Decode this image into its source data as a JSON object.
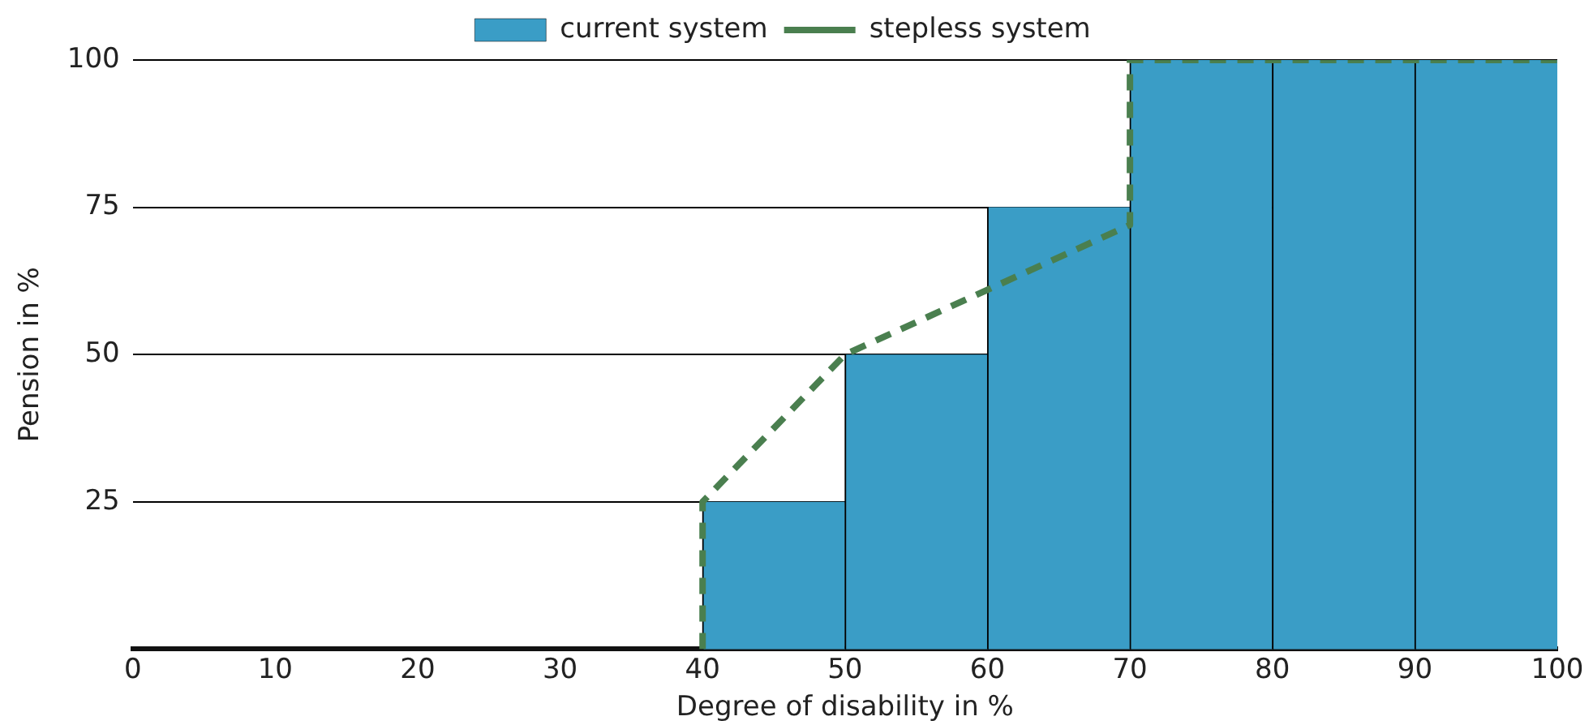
{
  "chart_data": {
    "type": "histogram",
    "xlabel": "Degree of disability in %",
    "ylabel": "Pension in %",
    "bins": [
      40,
      50,
      60,
      70,
      80,
      90,
      100
    ],
    "series": [
      {
        "name": "current system",
        "color": "#3a9dc6",
        "values": [
          25,
          50,
          75,
          100,
          100,
          100
        ]
      },
      {
        "name": "stepless system",
        "type": "line",
        "color": "#4a7f4f",
        "line_style": "dashed",
        "marker": "none",
        "x": [
          40,
          40,
          50,
          60,
          70,
          70,
          100
        ],
        "values": [
          0,
          25,
          50,
          61,
          72,
          100,
          100
        ]
      }
    ],
    "xlim": [
      0,
      100
    ],
    "xticks": [
      0,
      10,
      20,
      30,
      40,
      50,
      60,
      70,
      80,
      90,
      100
    ],
    "ylim": [
      0,
      100
    ],
    "yticks": [
      25,
      50,
      75,
      100
    ],
    "grid": "y",
    "legend": "top"
  }
}
